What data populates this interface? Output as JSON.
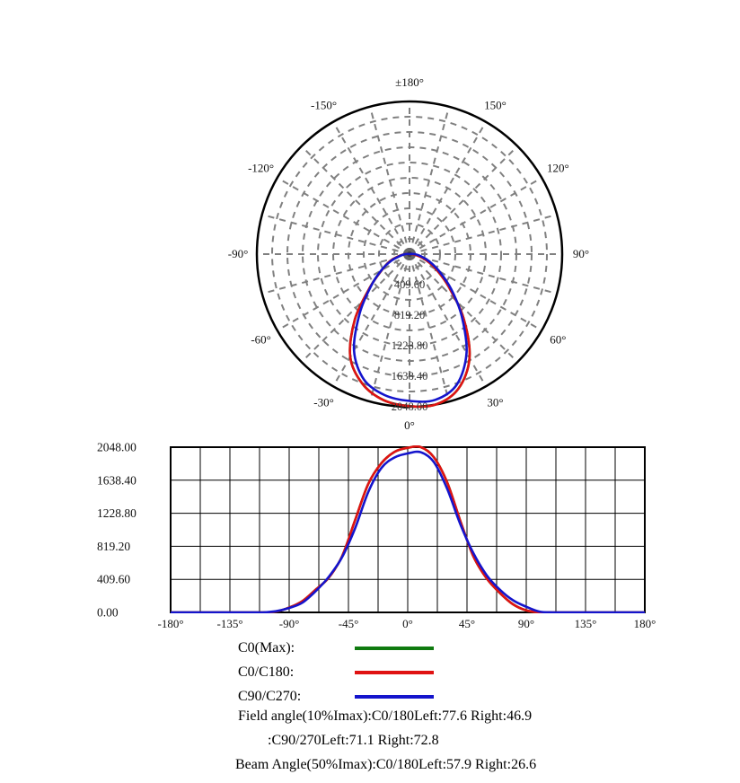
{
  "page": {
    "background": "#ffffff"
  },
  "legend": {
    "items": [
      {
        "label": "C0(Max):",
        "color": "#0f7a0f"
      },
      {
        "label": "C0/C180:",
        "color": "#e01212"
      },
      {
        "label": "C90/C270:",
        "color": "#1414cc"
      }
    ]
  },
  "footer": {
    "lines": [
      "Field angle(10%Imax):C0/180Left:77.6 Right:46.9",
      ":C90/270Left:71.1 Right:72.8",
      "Beam Angle(50%Imax):C0/180Left:57.9 Right:26.6"
    ]
  },
  "chart_data": {
    "series": [
      {
        "name": "C0(Max)",
        "color": "#0f7a0f",
        "angles": [
          -180,
          -170,
          -160,
          -150,
          -140,
          -130,
          -120,
          -110,
          -100,
          -90,
          -80,
          -70,
          -60,
          -50,
          -40,
          -30,
          -20,
          -10,
          0,
          10,
          20,
          30,
          40,
          50,
          60,
          70,
          80,
          90,
          100,
          110,
          120,
          130,
          140,
          150,
          160,
          170,
          180
        ],
        "values": [
          0,
          0,
          0,
          0,
          0,
          0,
          0,
          0,
          10,
          60,
          140,
          280,
          430,
          690,
          1140,
          1590,
          1850,
          1990,
          2040,
          2048,
          1920,
          1610,
          1130,
          690,
          420,
          240,
          100,
          25,
          0,
          0,
          0,
          0,
          0,
          0,
          0,
          0,
          0
        ]
      },
      {
        "name": "C0/C180",
        "color": "#e01212",
        "angles": [
          -180,
          -170,
          -160,
          -150,
          -140,
          -130,
          -120,
          -110,
          -100,
          -90,
          -80,
          -70,
          -60,
          -50,
          -40,
          -30,
          -20,
          -10,
          0,
          10,
          20,
          30,
          40,
          50,
          60,
          70,
          80,
          90,
          100,
          110,
          120,
          130,
          140,
          150,
          160,
          170,
          180
        ],
        "values": [
          0,
          0,
          0,
          0,
          0,
          0,
          0,
          0,
          10,
          60,
          140,
          280,
          430,
          690,
          1140,
          1590,
          1850,
          1990,
          2040,
          2048,
          1920,
          1610,
          1130,
          690,
          420,
          240,
          100,
          25,
          0,
          0,
          0,
          0,
          0,
          0,
          0,
          0,
          0
        ]
      },
      {
        "name": "C90/C270",
        "color": "#1414cc",
        "angles": [
          -180,
          -170,
          -160,
          -150,
          -140,
          -130,
          -120,
          -110,
          -100,
          -90,
          -80,
          -70,
          -60,
          -50,
          -40,
          -30,
          -20,
          -10,
          0,
          10,
          20,
          30,
          40,
          50,
          60,
          70,
          80,
          90,
          100,
          110,
          120,
          130,
          140,
          150,
          160,
          170,
          180
        ],
        "values": [
          0,
          0,
          0,
          0,
          0,
          0,
          0,
          0,
          15,
          55,
          120,
          260,
          440,
          680,
          1040,
          1490,
          1790,
          1920,
          1970,
          1985,
          1860,
          1530,
          1090,
          730,
          460,
          280,
          150,
          70,
          10,
          0,
          0,
          0,
          0,
          0,
          0,
          0,
          0
        ]
      }
    ],
    "polar": {
      "type": "polar",
      "orientation": "0-down",
      "r_max": 2048,
      "ring_step": 204.8,
      "spoke_step_deg": 15,
      "ring_labels": [
        {
          "value": 409.6,
          "label": "409.60"
        },
        {
          "value": 819.2,
          "label": "819.20"
        },
        {
          "value": 1228.8,
          "label": "1228.80"
        },
        {
          "value": 1638.4,
          "label": "1638.40"
        },
        {
          "value": 2048.0,
          "label": "2048.00"
        }
      ],
      "angle_labels": [
        {
          "deg": 180,
          "label": "±180°"
        },
        {
          "deg": -150,
          "label": "-150°"
        },
        {
          "deg": 150,
          "label": "150°"
        },
        {
          "deg": -120,
          "label": "-120°"
        },
        {
          "deg": 120,
          "label": "120°"
        },
        {
          "deg": -90,
          "label": "-90°"
        },
        {
          "deg": 90,
          "label": "90°"
        },
        {
          "deg": -60,
          "label": "-60°"
        },
        {
          "deg": 60,
          "label": "60°"
        },
        {
          "deg": -30,
          "label": "-30°"
        },
        {
          "deg": 30,
          "label": "30°"
        },
        {
          "deg": 0,
          "label": "0°"
        }
      ]
    },
    "cartesian": {
      "type": "line",
      "xlim": [
        -180,
        180
      ],
      "ylim": [
        0,
        2048
      ],
      "x_grid_step_deg": 22.5,
      "x_ticks": [
        {
          "value": -180,
          "label": "-180°"
        },
        {
          "value": -135,
          "label": "-135°"
        },
        {
          "value": -90,
          "label": "-90°"
        },
        {
          "value": -45,
          "label": "-45°"
        },
        {
          "value": 0,
          "label": "0°"
        },
        {
          "value": 45,
          "label": "45°"
        },
        {
          "value": 90,
          "label": "90°"
        },
        {
          "value": 135,
          "label": "135°"
        },
        {
          "value": 180,
          "label": "180°"
        }
      ],
      "y_ticks": [
        {
          "value": 2048,
          "label": "2048.00"
        },
        {
          "value": 1638.4,
          "label": "1638.40"
        },
        {
          "value": 1228.8,
          "label": "1228.80"
        },
        {
          "value": 819.2,
          "label": "819.20"
        },
        {
          "value": 409.6,
          "label": "409.60"
        },
        {
          "value": 0,
          "label": "0.00"
        }
      ]
    }
  }
}
